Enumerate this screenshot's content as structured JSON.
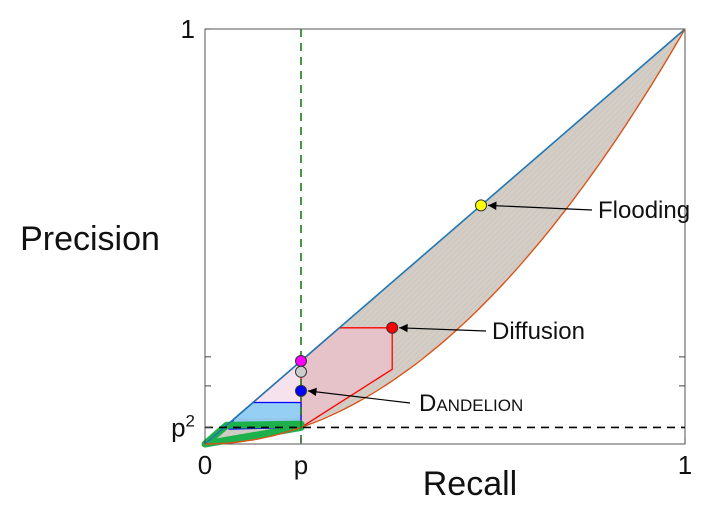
{
  "chart_data": {
    "type": "line",
    "xlabel": "Recall",
    "ylabel": "Precision",
    "xlim": [
      0,
      1
    ],
    "ylim": [
      0,
      1
    ],
    "p": 0.2,
    "ticks": {
      "x": [
        {
          "value": 0,
          "label": "0"
        },
        {
          "value": 0.2,
          "label": "p"
        },
        {
          "value": 1,
          "label": "1"
        }
      ],
      "y": [
        {
          "value": 0.04,
          "label": "p",
          "sup": "2"
        },
        {
          "value": 1,
          "label": "1"
        }
      ]
    },
    "extra_y_ticks": [
      0.14,
      0.21
    ],
    "upper_bound_line": {
      "color": "#1f77b4",
      "points": [
        [
          0,
          0
        ],
        [
          1,
          1
        ]
      ]
    },
    "lower_bound_curve": {
      "color": "#d95319",
      "points": [
        [
          0,
          0
        ],
        [
          0.1,
          0.01
        ],
        [
          0.2,
          0.04
        ],
        [
          0.3,
          0.09
        ],
        [
          0.4,
          0.16
        ],
        [
          0.5,
          0.25
        ],
        [
          0.6,
          0.36
        ],
        [
          0.7,
          0.49
        ],
        [
          0.8,
          0.64
        ],
        [
          0.9,
          0.81
        ],
        [
          1,
          1
        ]
      ]
    },
    "regions": [
      {
        "name": "Flooding",
        "fill": "#d3cdc6",
        "stroke": "none"
      },
      {
        "name": "Diffusion",
        "fill": "#e7c2c9",
        "stroke": "#ff0000",
        "points": [
          [
            0.06,
            0.06
          ],
          [
            0.2,
            0.2
          ],
          [
            0.28,
            0.28
          ],
          [
            0.39,
            0.28
          ],
          [
            0.39,
            0.18
          ],
          [
            0.2,
            0.04
          ]
        ]
      },
      {
        "name": "pink-region",
        "fill": "#f7e4ef",
        "stroke": "#ff0000",
        "points": [
          [
            0.06,
            0.06
          ],
          [
            0.2,
            0.2
          ],
          [
            0.2,
            0.06
          ]
        ]
      },
      {
        "name": "DANDELION",
        "fill": "#8fcdf3",
        "stroke": "#0000ff",
        "points": [
          [
            0.06,
            0.06
          ],
          [
            0.1,
            0.1
          ],
          [
            0.2,
            0.1
          ],
          [
            0.2,
            0.04
          ],
          [
            0.05,
            0.036
          ]
        ]
      },
      {
        "name": "green-region",
        "fill": "none",
        "stroke": "#1db14b",
        "points": [
          [
            0,
            0
          ],
          [
            0.045,
            0.045
          ],
          [
            0.2,
            0.048
          ],
          [
            0.2,
            0.04
          ],
          [
            0.0,
            0.0
          ]
        ]
      }
    ],
    "points": [
      {
        "name": "Flooding",
        "x": 0.575,
        "y": 0.575,
        "color": "#ffff00"
      },
      {
        "name": "Diffusion",
        "x": 0.39,
        "y": 0.28,
        "color": "#ff0000"
      },
      {
        "name": "magenta",
        "x": 0.2,
        "y": 0.2,
        "color": "#ff00ff"
      },
      {
        "name": "gray",
        "x": 0.2,
        "y": 0.174,
        "color": "#cccccc"
      },
      {
        "name": "DANDELION",
        "x": 0.2,
        "y": 0.128,
        "color": "#0000ff"
      }
    ],
    "reference_lines": [
      {
        "orientation": "vertical",
        "value": 0.2,
        "color": "#1a7f1a",
        "style": "dashed"
      },
      {
        "orientation": "horizontal",
        "value": 0.04,
        "color": "#000000",
        "style": "dashed"
      }
    ],
    "annotations": [
      {
        "text": "Flooding",
        "target": "Flooding"
      },
      {
        "text": "Diffusion",
        "target": "Diffusion"
      },
      {
        "text_first": "D",
        "text_rest": "ANDELION",
        "target": "DANDELION"
      }
    ]
  }
}
